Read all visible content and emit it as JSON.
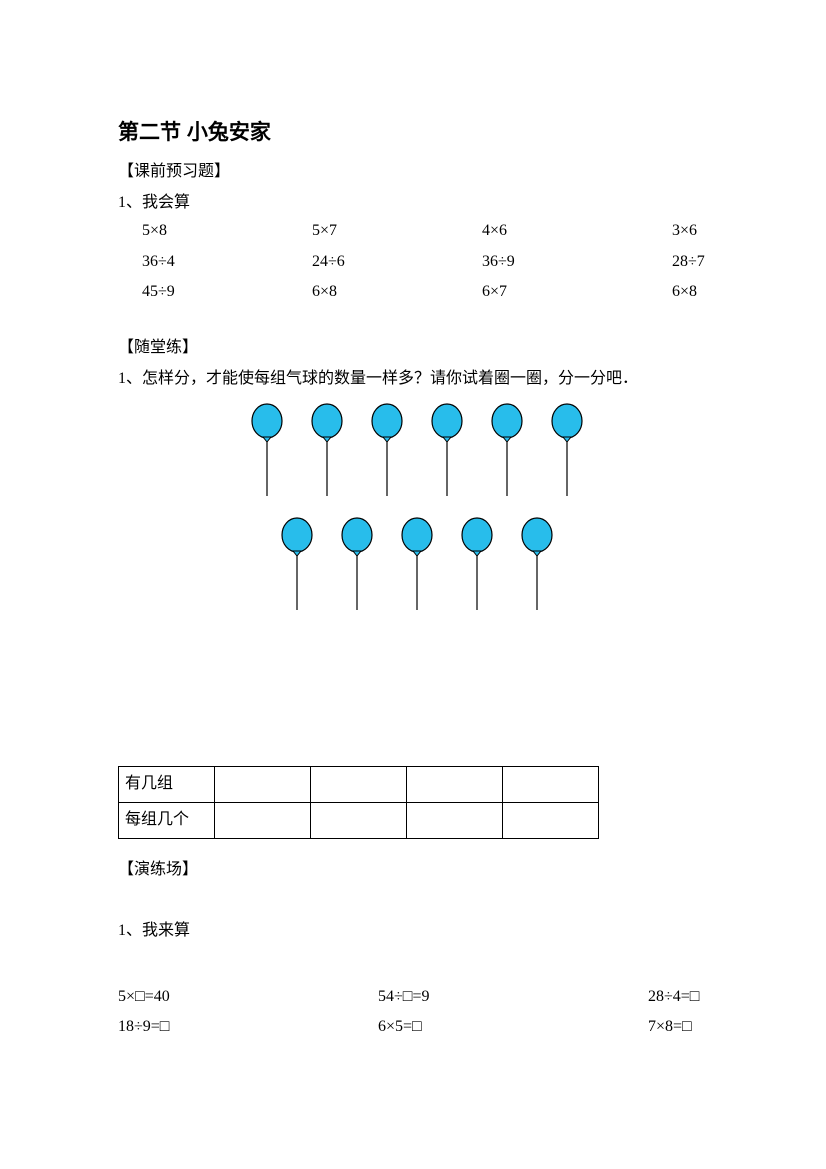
{
  "title": "第二节  小兔安家",
  "section1": {
    "label": "【课前预习题】",
    "q1_prefix": "1、",
    "q1_text": "我会算",
    "arith": [
      [
        "5×8",
        "5×7",
        "4×6",
        "3×6"
      ],
      [
        "36÷4",
        "24÷6",
        "36÷9",
        "28÷7"
      ],
      [
        "45÷9",
        "6×8",
        "6×7",
        "6×8"
      ]
    ]
  },
  "section2": {
    "label": "【随堂练】",
    "q1_prefix": "1、",
    "q1_text": "怎样分，才能使每组气球的数量一样多？请你试着圈一圈，分一分吧．",
    "balloons": {
      "rows": [
        6,
        5
      ],
      "fill": "#28bdeb",
      "stroke": "#000000",
      "spacing": 60,
      "width": 30,
      "height_head": 34,
      "stick": 60
    },
    "table": {
      "row1_label": "有几组",
      "row2_label": "每组几个",
      "empty_cols": 4
    }
  },
  "section3": {
    "label": "【演练场】",
    "q1_prefix": "1、",
    "q1_text": "我来算",
    "eqs": [
      [
        "5×□=40",
        "54÷□=9",
        "28÷4=□"
      ],
      [
        "18÷9=□",
        "6×5=□",
        "7×8=□"
      ]
    ]
  }
}
